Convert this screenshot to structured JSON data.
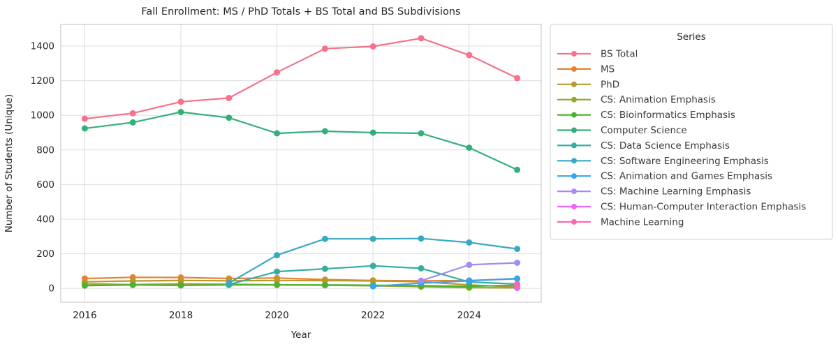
{
  "chart_data": {
    "type": "line",
    "title": "Fall Enrollment: MS / PhD Totals + BS Total and BS Subdivisions",
    "xlabel": "Year",
    "ylabel": "Number of Students (Unique)",
    "legend_title": "Series",
    "legend_position": "outside-upper-right",
    "grid": true,
    "x": [
      2016,
      2017,
      2018,
      2019,
      2020,
      2021,
      2022,
      2023,
      2024,
      2025
    ],
    "x_ticks": [
      2016,
      2018,
      2020,
      2022,
      2024
    ],
    "y_ticks": [
      0,
      200,
      400,
      600,
      800,
      1000,
      1200,
      1400
    ],
    "xlim": [
      2015.5,
      2025.5
    ],
    "ylim": [
      -80,
      1525
    ],
    "series": [
      {
        "name": "BS Total",
        "color": "#f77189",
        "values": [
          980,
          1012,
          1078,
          1100,
          1248,
          1385,
          1398,
          1445,
          1348,
          1215
        ]
      },
      {
        "name": "MS",
        "color": "#e68332",
        "values": [
          57,
          64,
          63,
          57,
          60,
          51,
          46,
          44,
          46,
          55
        ]
      },
      {
        "name": "PhD",
        "color": "#bb9832",
        "values": [
          38,
          43,
          46,
          44,
          46,
          45,
          43,
          38,
          20,
          8
        ]
      },
      {
        "name": "CS: Animation Emphasis",
        "color": "#97a431",
        "values": [
          26,
          22,
          26,
          24,
          21,
          18,
          15,
          10,
          4,
          3
        ]
      },
      {
        "name": "CS: Bioinformatics Emphasis",
        "color": "#50b131",
        "values": [
          16,
          20,
          17,
          20,
          20,
          20,
          18,
          15,
          12,
          18
        ]
      },
      {
        "name": "Computer Science",
        "color": "#33b07a",
        "values": [
          924,
          959,
          1019,
          986,
          896,
          908,
          900,
          896,
          813,
          685
        ]
      },
      {
        "name": "CS: Data Science Emphasis",
        "color": "#36ada4",
        "values": [
          null,
          null,
          null,
          22,
          97,
          113,
          130,
          116,
          37,
          25
        ]
      },
      {
        "name": "CS: Software Engineering Emphasis",
        "color": "#38a9c5",
        "values": [
          null,
          null,
          null,
          31,
          192,
          286,
          286,
          288,
          265,
          228
        ]
      },
      {
        "name": "CS: Animation and Games Emphasis",
        "color": "#3ba3ec",
        "values": [
          null,
          null,
          null,
          null,
          null,
          null,
          12,
          30,
          44,
          57
        ]
      },
      {
        "name": "CS: Machine Learning Emphasis",
        "color": "#a48cf4",
        "values": [
          null,
          null,
          null,
          null,
          null,
          null,
          null,
          44,
          136,
          148
        ]
      },
      {
        "name": "CS: Human-Computer Interaction Emphasis",
        "color": "#e866f4",
        "values": [
          null,
          null,
          null,
          null,
          null,
          null,
          null,
          null,
          null,
          4
        ]
      },
      {
        "name": "Machine Learning",
        "color": "#f66bad",
        "values": [
          null,
          null,
          null,
          null,
          null,
          null,
          null,
          null,
          null,
          24
        ]
      }
    ]
  }
}
